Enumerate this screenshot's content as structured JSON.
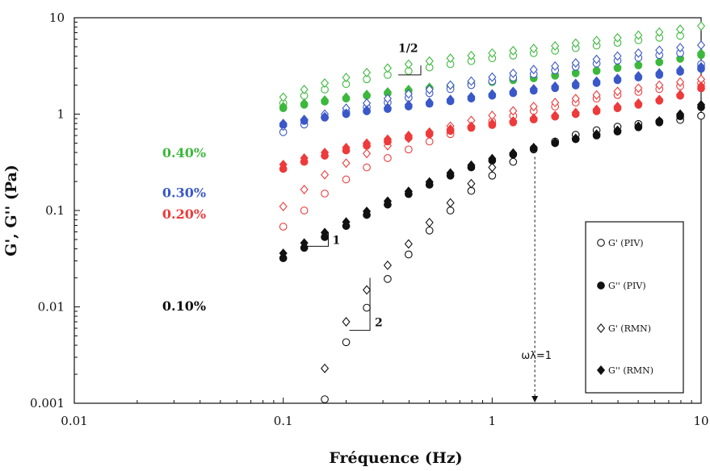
{
  "chart_data": {
    "type": "scatter",
    "xscale": "log",
    "yscale": "log",
    "xlim": [
      0.01,
      10
    ],
    "ylim": [
      0.001,
      10
    ],
    "xlabel": "Fréquence (Hz)",
    "ylabel": "G', G'' (Pa)",
    "x_ticks": [
      "0.01",
      "0.1",
      "1",
      "10"
    ],
    "y_ticks": [
      "0.001",
      "0.01",
      "0.1",
      "1",
      "10"
    ],
    "grid": false,
    "legend_position": "bottom-right",
    "legend": [
      {
        "label": "G' (PIV)",
        "marker": "open-circle"
      },
      {
        "label": "G'' (PIV)",
        "marker": "filled-circle"
      },
      {
        "label": "G' (RMN)",
        "marker": "open-diamond"
      },
      {
        "label": "G'' (RMN)",
        "marker": "filled-diamond"
      }
    ],
    "concentration_labels": [
      {
        "text": "0.40%",
        "color": "#3db83d"
      },
      {
        "text": "0.30%",
        "color": "#3a58c8"
      },
      {
        "text": "0.20%",
        "color": "#ee3a3a"
      },
      {
        "text": "0.10%",
        "color": "#111111"
      }
    ],
    "annotations": {
      "slope_half": "1/2",
      "slope_one": "1",
      "slope_two": "2",
      "crossover": "ωλ=1",
      "crossover_x": 1.6
    },
    "series": [
      {
        "conc": "0.40%",
        "color": "#3db83d",
        "marker": "open-circle",
        "x": [
          0.1,
          0.126,
          0.158,
          0.2,
          0.251,
          0.316,
          0.398,
          0.501,
          0.631,
          0.794,
          1.0,
          1.26,
          1.58,
          2.0,
          2.51,
          3.16,
          3.98,
          5.01,
          6.31,
          7.94
        ],
        "y": [
          1.3,
          1.55,
          1.8,
          2.05,
          2.3,
          2.55,
          2.8,
          3.05,
          3.3,
          3.55,
          3.8,
          4.05,
          4.3,
          4.55,
          4.85,
          5.15,
          5.5,
          5.85,
          6.2,
          6.5
        ]
      },
      {
        "conc": "0.40%",
        "color": "#3db83d",
        "marker": "open-diamond",
        "x": [
          0.1,
          0.126,
          0.158,
          0.2,
          0.251,
          0.316,
          0.398,
          0.501,
          0.631,
          0.794,
          1.0,
          1.26,
          1.58,
          2.0,
          2.51,
          3.16,
          3.98,
          5.01,
          6.31,
          7.94,
          10.0
        ],
        "y": [
          1.5,
          1.8,
          2.1,
          2.4,
          2.7,
          3.0,
          3.3,
          3.55,
          3.8,
          4.05,
          4.3,
          4.55,
          4.8,
          5.1,
          5.45,
          5.8,
          6.2,
          6.6,
          7.1,
          7.6,
          8.2
        ]
      },
      {
        "conc": "0.40%",
        "color": "#3db83d",
        "marker": "filled-circle",
        "x": [
          0.1,
          0.126,
          0.158,
          0.2,
          0.251,
          0.316,
          0.398,
          0.501,
          0.631,
          0.794,
          1.0,
          1.26,
          1.58,
          2.0,
          2.51,
          3.16,
          3.98,
          5.01,
          6.31,
          7.94,
          10.0
        ],
        "y": [
          1.15,
          1.25,
          1.35,
          1.45,
          1.55,
          1.65,
          1.75,
          1.85,
          1.95,
          2.05,
          2.15,
          2.25,
          2.35,
          2.5,
          2.65,
          2.8,
          3.0,
          3.2,
          3.45,
          3.75,
          4.1
        ]
      },
      {
        "conc": "0.40%",
        "color": "#3db83d",
        "marker": "filled-diamond",
        "x": [
          0.1,
          0.126,
          0.158,
          0.2,
          0.251,
          0.316,
          0.398,
          0.501,
          0.631,
          0.794,
          1.0,
          1.26,
          1.58,
          2.0,
          2.51,
          3.16,
          3.98,
          5.01,
          6.31,
          7.94,
          10.0
        ],
        "y": [
          1.2,
          1.3,
          1.4,
          1.5,
          1.6,
          1.7,
          1.8,
          1.9,
          2.0,
          2.1,
          2.2,
          2.3,
          2.45,
          2.6,
          2.75,
          2.9,
          3.1,
          3.3,
          3.55,
          3.85,
          4.3
        ]
      },
      {
        "conc": "0.30%",
        "color": "#3a58c8",
        "marker": "open-circle",
        "x": [
          0.1,
          0.126,
          0.158,
          0.2,
          0.251,
          0.316,
          0.398,
          0.501,
          0.631,
          0.794,
          1.0,
          1.26,
          1.58,
          2.0,
          2.51,
          3.16,
          3.98,
          5.01,
          6.31,
          7.94,
          10.0
        ],
        "y": [
          0.65,
          0.78,
          0.92,
          1.05,
          1.18,
          1.32,
          1.48,
          1.65,
          1.82,
          2.0,
          2.2,
          2.4,
          2.6,
          2.85,
          3.1,
          3.35,
          3.6,
          3.85,
          4.1,
          4.3,
          3.3
        ]
      },
      {
        "conc": "0.30%",
        "color": "#3a58c8",
        "marker": "open-diamond",
        "x": [
          0.1,
          0.126,
          0.158,
          0.2,
          0.251,
          0.316,
          0.398,
          0.501,
          0.631,
          0.794,
          1.0,
          1.26,
          1.58,
          2.0,
          2.51,
          3.16,
          3.98,
          5.01,
          6.31,
          7.94,
          10.0
        ],
        "y": [
          0.75,
          0.88,
          1.0,
          1.15,
          1.3,
          1.45,
          1.62,
          1.8,
          2.0,
          2.2,
          2.42,
          2.65,
          2.9,
          3.15,
          3.4,
          3.7,
          4.0,
          4.3,
          4.6,
          4.9,
          5.2
        ]
      },
      {
        "conc": "0.30%",
        "color": "#3a58c8",
        "marker": "filled-circle",
        "x": [
          0.1,
          0.126,
          0.158,
          0.2,
          0.251,
          0.316,
          0.398,
          0.501,
          0.631,
          0.794,
          1.0,
          1.26,
          1.58,
          2.0,
          2.51,
          3.16,
          3.98,
          5.01,
          6.31,
          7.94,
          10.0
        ],
        "y": [
          0.78,
          0.85,
          0.92,
          1.0,
          1.07,
          1.13,
          1.2,
          1.28,
          1.36,
          1.45,
          1.55,
          1.65,
          1.75,
          1.86,
          1.98,
          2.1,
          2.25,
          2.4,
          2.55,
          2.75,
          2.95
        ]
      },
      {
        "conc": "0.30%",
        "color": "#3a58c8",
        "marker": "filled-diamond",
        "x": [
          0.1,
          0.126,
          0.158,
          0.2,
          0.251,
          0.316,
          0.398,
          0.501,
          0.631,
          0.794,
          1.0,
          1.26,
          1.58,
          2.0,
          2.51,
          3.16,
          3.98,
          5.01,
          6.31,
          7.94,
          10.0
        ],
        "y": [
          0.8,
          0.87,
          0.94,
          1.02,
          1.1,
          1.17,
          1.25,
          1.33,
          1.42,
          1.52,
          1.62,
          1.72,
          1.83,
          1.95,
          2.08,
          2.2,
          2.35,
          2.5,
          2.68,
          2.88,
          3.1
        ]
      },
      {
        "conc": "0.20%",
        "color": "#ee3a3a",
        "marker": "open-circle",
        "x": [
          0.1,
          0.126,
          0.158,
          0.2,
          0.251,
          0.316,
          0.398,
          0.501,
          0.631,
          0.794,
          1.0,
          1.26,
          1.58,
          2.0,
          2.51,
          3.16,
          3.98,
          5.01,
          6.31,
          7.94,
          10.0
        ],
        "y": [
          0.068,
          0.1,
          0.15,
          0.21,
          0.28,
          0.35,
          0.43,
          0.52,
          0.62,
          0.73,
          0.84,
          0.96,
          1.08,
          1.2,
          1.32,
          1.45,
          1.58,
          1.7,
          1.82,
          1.95,
          2.1
        ]
      },
      {
        "conc": "0.20%",
        "color": "#ee3a3a",
        "marker": "open-diamond",
        "x": [
          0.1,
          0.126,
          0.158,
          0.2,
          0.251,
          0.316,
          0.398,
          0.501,
          0.631,
          0.794,
          1.0,
          1.26,
          1.58,
          2.0,
          2.51,
          3.16,
          3.98,
          5.01,
          6.31,
          7.94,
          10.0
        ],
        "y": [
          0.11,
          0.165,
          0.235,
          0.31,
          0.39,
          0.47,
          0.56,
          0.65,
          0.75,
          0.86,
          0.97,
          1.08,
          1.2,
          1.32,
          1.45,
          1.58,
          1.72,
          1.86,
          2.0,
          2.15,
          2.3
        ]
      },
      {
        "conc": "0.20%",
        "color": "#ee3a3a",
        "marker": "filled-circle",
        "x": [
          0.1,
          0.126,
          0.158,
          0.2,
          0.251,
          0.316,
          0.398,
          0.501,
          0.631,
          0.794,
          1.0,
          1.26,
          1.58,
          2.0,
          2.51,
          3.16,
          3.98,
          5.01,
          6.31,
          7.94,
          10.0
        ],
        "y": [
          0.27,
          0.32,
          0.37,
          0.42,
          0.47,
          0.52,
          0.57,
          0.62,
          0.67,
          0.72,
          0.77,
          0.82,
          0.88,
          0.94,
          1.0,
          1.07,
          1.15,
          1.25,
          1.38,
          1.55,
          1.85
        ]
      },
      {
        "conc": "0.20%",
        "color": "#ee3a3a",
        "marker": "filled-diamond",
        "x": [
          0.1,
          0.126,
          0.158,
          0.2,
          0.251,
          0.316,
          0.398,
          0.501,
          0.631,
          0.794,
          1.0,
          1.26,
          1.58,
          2.0,
          2.51,
          3.16,
          3.98,
          5.01,
          6.31,
          7.94,
          10.0
        ],
        "y": [
          0.3,
          0.35,
          0.4,
          0.45,
          0.5,
          0.55,
          0.6,
          0.65,
          0.7,
          0.75,
          0.8,
          0.85,
          0.91,
          0.97,
          1.04,
          1.12,
          1.2,
          1.3,
          1.42,
          1.6,
          1.95
        ]
      },
      {
        "conc": "0.10%",
        "color": "#111111",
        "marker": "open-circle",
        "x": [
          0.158,
          0.2,
          0.251,
          0.316,
          0.398,
          0.501,
          0.631,
          0.794,
          1.0,
          1.26,
          1.58,
          2.0,
          2.51,
          3.16,
          3.98,
          5.01,
          6.31,
          7.94,
          10.0
        ],
        "y": [
          0.0011,
          0.0043,
          0.0098,
          0.0195,
          0.035,
          0.062,
          0.1,
          0.16,
          0.23,
          0.32,
          0.43,
          0.52,
          0.61,
          0.68,
          0.74,
          0.79,
          0.84,
          0.87,
          0.96
        ]
      },
      {
        "conc": "0.10%",
        "color": "#111111",
        "marker": "open-diamond",
        "x": [
          0.158,
          0.2,
          0.251,
          0.316,
          0.398,
          0.501,
          0.631,
          0.794,
          1.0
        ],
        "y": [
          0.0023,
          0.007,
          0.015,
          0.027,
          0.045,
          0.075,
          0.12,
          0.19,
          0.28
        ]
      },
      {
        "conc": "0.10%",
        "color": "#111111",
        "marker": "filled-circle",
        "x": [
          0.1,
          0.126,
          0.158,
          0.2,
          0.251,
          0.316,
          0.398,
          0.501,
          0.631,
          0.794,
          1.0,
          1.26,
          1.58,
          2.0,
          2.51,
          3.16,
          3.98,
          5.01,
          6.31,
          7.94,
          10.0
        ],
        "y": [
          0.032,
          0.041,
          0.053,
          0.069,
          0.09,
          0.115,
          0.148,
          0.185,
          0.23,
          0.28,
          0.33,
          0.38,
          0.44,
          0.5,
          0.55,
          0.6,
          0.66,
          0.73,
          0.82,
          0.95,
          1.18
        ]
      },
      {
        "conc": "0.10%",
        "color": "#111111",
        "marker": "filled-diamond",
        "x": [
          0.1,
          0.126,
          0.158,
          0.2,
          0.251,
          0.316,
          0.398,
          0.501,
          0.631,
          0.794,
          1.0,
          1.26,
          1.58,
          2.0,
          2.51,
          3.16,
          3.98,
          5.01,
          6.31,
          7.94,
          10.0
        ],
        "y": [
          0.036,
          0.046,
          0.059,
          0.076,
          0.098,
          0.125,
          0.158,
          0.198,
          0.245,
          0.295,
          0.345,
          0.395,
          0.45,
          0.51,
          0.56,
          0.62,
          0.68,
          0.75,
          0.85,
          1.0,
          1.25
        ]
      }
    ]
  }
}
